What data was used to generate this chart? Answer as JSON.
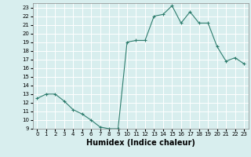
{
  "x": [
    0,
    1,
    2,
    3,
    4,
    5,
    6,
    7,
    8,
    9,
    10,
    11,
    12,
    13,
    14,
    15,
    16,
    17,
    18,
    19,
    20,
    21,
    22,
    23
  ],
  "y": [
    12.5,
    13.0,
    13.0,
    12.2,
    11.2,
    10.7,
    10.0,
    9.2,
    9.0,
    9.0,
    19.0,
    19.2,
    19.2,
    22.0,
    22.2,
    23.2,
    21.2,
    22.5,
    21.2,
    21.2,
    18.5,
    16.8,
    17.2,
    16.5
  ],
  "line_color": "#2e7d6e",
  "marker": "+",
  "marker_size": 3,
  "bg_color": "#d8eeee",
  "grid_color": "#ffffff",
  "xlabel": "Humidex (Indice chaleur)",
  "xlabel_fontsize": 7,
  "xlim": [
    -0.5,
    23.5
  ],
  "ylim": [
    9,
    23.5
  ],
  "yticks": [
    9,
    10,
    11,
    12,
    13,
    14,
    15,
    16,
    17,
    18,
    19,
    20,
    21,
    22,
    23
  ],
  "xticks": [
    0,
    1,
    2,
    3,
    4,
    5,
    6,
    7,
    8,
    9,
    10,
    11,
    12,
    13,
    14,
    15,
    16,
    17,
    18,
    19,
    20,
    21,
    22,
    23
  ]
}
